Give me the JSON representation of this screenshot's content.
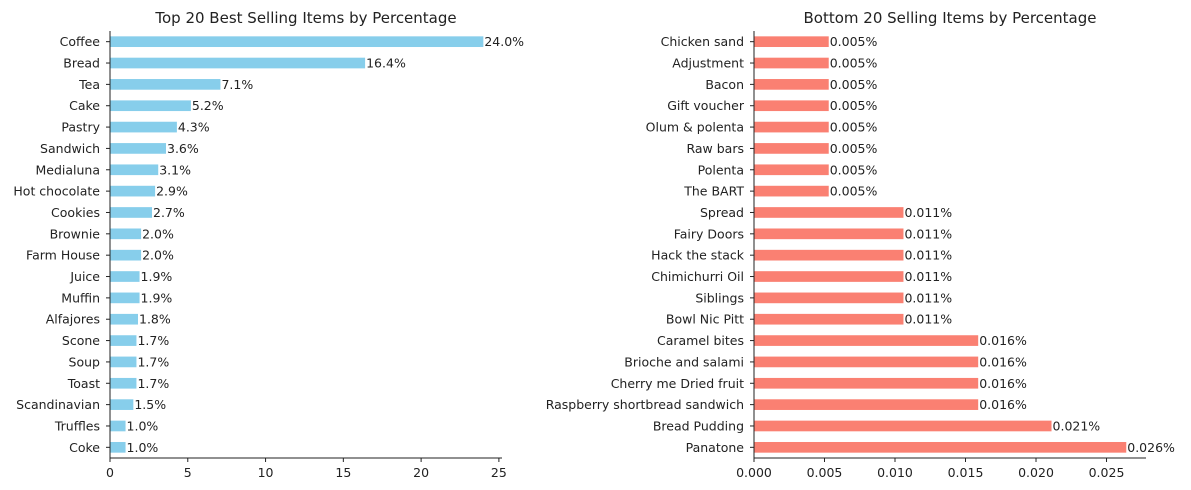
{
  "chart_data": [
    {
      "type": "bar",
      "orientation": "horizontal",
      "title": "Top 20 Best Selling Items by Percentage",
      "xlabel": "",
      "ylabel": "",
      "color": "#87CEEB",
      "categories": [
        "Coffee",
        "Bread",
        "Tea",
        "Cake",
        "Pastry",
        "Sandwich",
        "Medialuna",
        "Hot chocolate",
        "Cookies",
        "Brownie",
        "Farm House",
        "Juice",
        "Muffin",
        "Alfajores",
        "Scone",
        "Soup",
        "Toast",
        "Scandinavian",
        "Truffles",
        "Coke"
      ],
      "values": [
        24.0,
        16.4,
        7.1,
        5.2,
        4.3,
        3.6,
        3.1,
        2.9,
        2.7,
        2.0,
        2.0,
        1.9,
        1.9,
        1.8,
        1.7,
        1.7,
        1.7,
        1.5,
        1.0,
        1.0
      ],
      "data_labels": [
        "24.0%",
        "16.4%",
        "7.1%",
        "5.2%",
        "4.3%",
        "3.6%",
        "3.1%",
        "2.9%",
        "2.7%",
        "2.0%",
        "2.0%",
        "1.9%",
        "1.9%",
        "1.8%",
        "1.7%",
        "1.7%",
        "1.7%",
        "1.5%",
        "1.0%",
        "1.0%"
      ],
      "xlim": [
        0,
        25.2
      ],
      "xticks": [
        0,
        5,
        10,
        15,
        20,
        25
      ],
      "xtick_labels": [
        "0",
        "5",
        "10",
        "15",
        "20",
        "25"
      ],
      "grid": false,
      "legend": "none"
    },
    {
      "type": "bar",
      "orientation": "horizontal",
      "title": "Bottom 20 Selling Items by Percentage",
      "xlabel": "",
      "ylabel": "",
      "color": "#FA8072",
      "categories": [
        "Chicken sand",
        "Adjustment",
        "Bacon",
        "Gift voucher",
        "Olum & polenta",
        "Raw bars",
        "Polenta",
        "The BART",
        "Spread",
        "Fairy Doors",
        "Hack the stack",
        "Chimichurri Oil",
        "Siblings",
        "Bowl Nic Pitt",
        "Caramel bites",
        "Brioche and salami",
        "Cherry me Dried fruit",
        "Raspberry shortbread sandwich",
        "Bread Pudding",
        "Panatone"
      ],
      "values": [
        0.0053,
        0.0053,
        0.0053,
        0.0053,
        0.0053,
        0.0053,
        0.0053,
        0.0053,
        0.0106,
        0.0106,
        0.0106,
        0.0106,
        0.0106,
        0.0106,
        0.0159,
        0.0159,
        0.0159,
        0.0159,
        0.0211,
        0.0264
      ],
      "data_labels": [
        "0.005%",
        "0.005%",
        "0.005%",
        "0.005%",
        "0.005%",
        "0.005%",
        "0.005%",
        "0.005%",
        "0.011%",
        "0.011%",
        "0.011%",
        "0.011%",
        "0.011%",
        "0.011%",
        "0.016%",
        "0.016%",
        "0.016%",
        "0.016%",
        "0.021%",
        "0.026%"
      ],
      "xlim": [
        0,
        0.0278
      ],
      "xticks": [
        0,
        0.005,
        0.01,
        0.015,
        0.02,
        0.025
      ],
      "xtick_labels": [
        "0.000",
        "0.005",
        "0.010",
        "0.015",
        "0.020",
        "0.025"
      ],
      "grid": false,
      "legend": "none"
    }
  ]
}
